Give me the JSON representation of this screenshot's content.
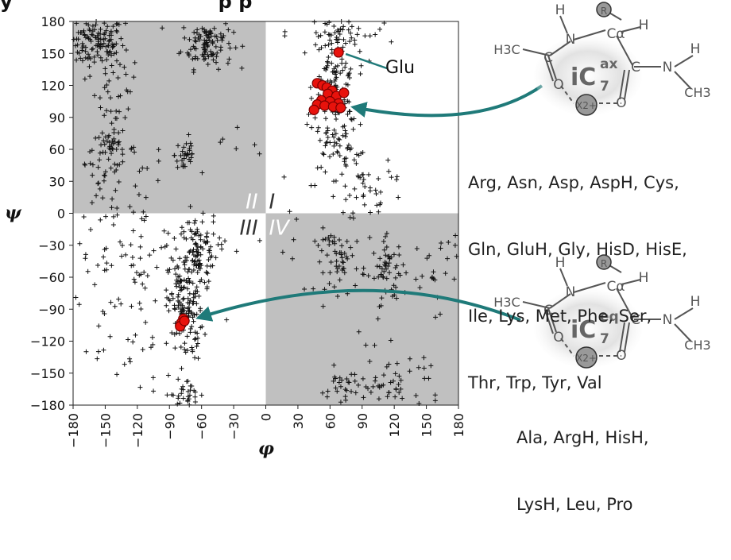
{
  "title_fragment": "y                               p p",
  "chart_data": {
    "type": "scatter",
    "title": "",
    "xlabel": "φ",
    "ylabel": "ψ",
    "xlim": [
      -180,
      180
    ],
    "ylim": [
      -180,
      180
    ],
    "xticks": [
      -180,
      -150,
      -120,
      -90,
      -60,
      -30,
      0,
      30,
      60,
      90,
      120,
      150,
      180
    ],
    "yticks": [
      180,
      150,
      120,
      90,
      60,
      30,
      0,
      -30,
      -60,
      -90,
      -120,
      -150,
      -180
    ],
    "xtick_labels": [
      "−180",
      "−150",
      "−120",
      "−90",
      "−60",
      "−30",
      "0",
      "30",
      "60",
      "90",
      "120",
      "150",
      "180"
    ],
    "ytick_labels": [
      "180",
      "150",
      "120",
      "90",
      "60",
      "30",
      "0",
      "−30",
      "−60",
      "−90",
      "−120",
      "−150",
      "−180"
    ],
    "quadrant_labels": [
      "II",
      "I",
      "III",
      "IV"
    ],
    "shaded_quadrants": [
      "II",
      "IV"
    ],
    "point_clusters": [
      {
        "cx": -160,
        "cy": 160,
        "sx": 14,
        "sy": 12,
        "n": 130
      },
      {
        "cx": -55,
        "cy": 160,
        "sx": 12,
        "sy": 12,
        "n": 110
      },
      {
        "cx": -140,
        "cy": 120,
        "sx": 10,
        "sy": 25,
        "n": 40
      },
      {
        "cx": -145,
        "cy": 60,
        "sx": 12,
        "sy": 8,
        "n": 50
      },
      {
        "cx": -75,
        "cy": 55,
        "sx": 5,
        "sy": 10,
        "n": 30
      },
      {
        "cx": -140,
        "cy": 10,
        "sx": 25,
        "sy": 25,
        "n": 40
      },
      {
        "cx": 65,
        "cy": 115,
        "sx": 10,
        "sy": 35,
        "n": 170
      },
      {
        "cx": 70,
        "cy": 170,
        "sx": 25,
        "sy": 10,
        "n": 40
      },
      {
        "cx": 80,
        "cy": 50,
        "sx": 20,
        "sy": 25,
        "n": 35
      },
      {
        "cx": 100,
        "cy": 20,
        "sx": 15,
        "sy": 15,
        "n": 25
      },
      {
        "cx": -65,
        "cy": -35,
        "sx": 10,
        "sy": 15,
        "n": 100
      },
      {
        "cx": -75,
        "cy": -90,
        "sx": 8,
        "sy": 25,
        "n": 150
      },
      {
        "cx": -130,
        "cy": -50,
        "sx": 35,
        "sy": 20,
        "n": 60
      },
      {
        "cx": -75,
        "cy": -170,
        "sx": 10,
        "sy": 8,
        "n": 35
      },
      {
        "cx": -140,
        "cy": -125,
        "sx": 20,
        "sy": 25,
        "n": 25
      },
      {
        "cx": 70,
        "cy": -45,
        "sx": 12,
        "sy": 15,
        "n": 60
      },
      {
        "cx": 115,
        "cy": -55,
        "sx": 8,
        "sy": 15,
        "n": 55
      },
      {
        "cx": 160,
        "cy": -50,
        "sx": 15,
        "sy": 20,
        "n": 30
      },
      {
        "cx": 80,
        "cy": -165,
        "sx": 15,
        "sy": 10,
        "n": 40
      },
      {
        "cx": 125,
        "cy": -160,
        "sx": 20,
        "sy": 15,
        "n": 40
      },
      {
        "cx": 0,
        "cy": 0,
        "sx": 90,
        "sy": 90,
        "n": 40
      }
    ],
    "highlight_points": [
      {
        "x": 68,
        "y": 151
      },
      {
        "x": 48,
        "y": 122
      },
      {
        "x": 53,
        "y": 120
      },
      {
        "x": 57,
        "y": 118
      },
      {
        "x": 62,
        "y": 115
      },
      {
        "x": 58,
        "y": 112
      },
      {
        "x": 66,
        "y": 110
      },
      {
        "x": 73,
        "y": 113
      },
      {
        "x": 52,
        "y": 106
      },
      {
        "x": 60,
        "y": 105
      },
      {
        "x": 68,
        "y": 103
      },
      {
        "x": 48,
        "y": 102
      },
      {
        "x": 55,
        "y": 101
      },
      {
        "x": 63,
        "y": 100
      },
      {
        "x": 45,
        "y": 97
      },
      {
        "x": 70,
        "y": 99
      },
      {
        "x": -77,
        "y": -99
      },
      {
        "x": -79,
        "y": -103
      },
      {
        "x": -80,
        "y": -106
      },
      {
        "x": -76,
        "y": -101
      }
    ]
  },
  "annotations": {
    "glu_label": "Glu",
    "top_residues": [
      "Arg, Asn, Asp, AspH, Cys,",
      "Gln, GluH, Gly, HisD, HisE,",
      "Ile, Lys, Met, Phe, Ser,",
      "Thr, Trp, Tyr, Val"
    ],
    "bottom_residues": [
      "Ala, ArgH, HisH,",
      "LysH, Leu, Pro"
    ]
  },
  "structures": {
    "top": {
      "label": "iC",
      "sub": "7",
      "sup": "ax",
      "atoms": [
        "H",
        "R",
        "N",
        "Cα",
        "H",
        "H3C",
        "C",
        "C",
        "N",
        "H",
        "CH3",
        "O",
        "O",
        "X2+"
      ]
    },
    "bottom": {
      "label": "iC",
      "sub": "7",
      "sup": "eq",
      "atoms": [
        "H",
        "R",
        "N",
        "Cα",
        "H",
        "H3C",
        "C",
        "C",
        "N",
        "H",
        "CH3",
        "O",
        "O",
        "X2+"
      ]
    }
  },
  "colors": {
    "shade": "#c0c0c0",
    "marker": "#111111",
    "highlight_fill": "#e8120c",
    "highlight_edge": "#7a0000",
    "arrow": "#1f7a79",
    "blob": "#c8c8c8"
  }
}
